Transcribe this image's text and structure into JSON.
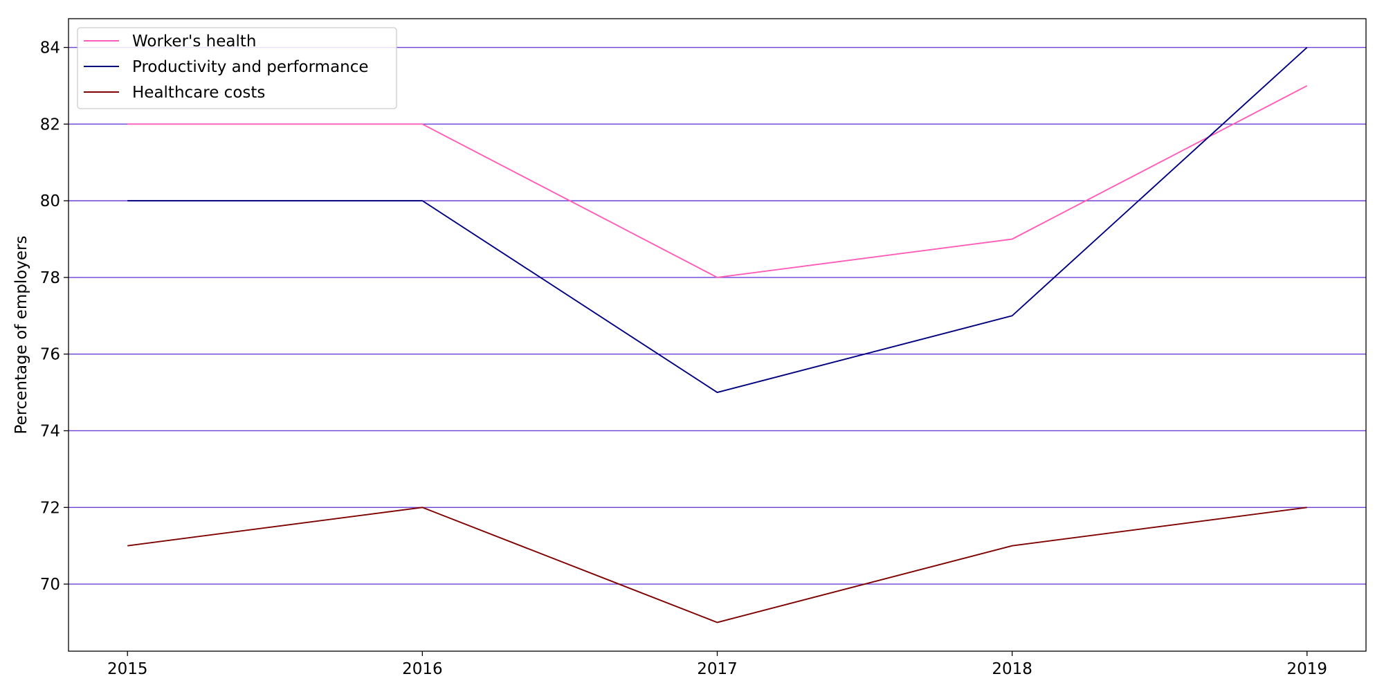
{
  "chart_data": {
    "type": "line",
    "title": "",
    "xlabel": "",
    "ylabel": "Percentage of employers",
    "x": [
      2015,
      2016,
      2017,
      2018,
      2019
    ],
    "xlim": [
      2014.8,
      2019.2
    ],
    "ylim": [
      68.25,
      84.75
    ],
    "yticks": [
      70,
      72,
      74,
      76,
      78,
      80,
      82,
      84
    ],
    "grid": "horizontal",
    "grid_color": "#6a3fd8",
    "legend_position": "upper-left",
    "series": [
      {
        "name": "Worker's health",
        "color": "#ff5bb8",
        "values": [
          82,
          82,
          78,
          79,
          83
        ]
      },
      {
        "name": "Productivity and performance",
        "color": "#00007f",
        "values": [
          80,
          80,
          75,
          77,
          84
        ]
      },
      {
        "name": "Healthcare costs",
        "color": "#7f0000",
        "values": [
          71,
          72,
          69,
          71,
          72
        ]
      }
    ]
  }
}
